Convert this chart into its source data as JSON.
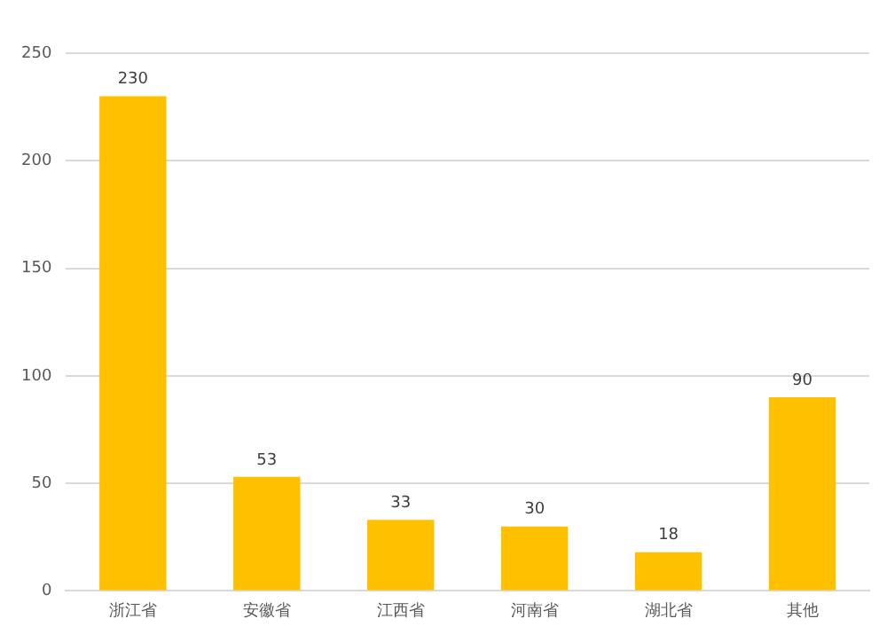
{
  "chart_data": {
    "type": "bar",
    "categories": [
      "浙江省",
      "安徽省",
      "江西省",
      "河南省",
      "湖北省",
      "其他"
    ],
    "values": [
      230,
      53,
      33,
      30,
      18,
      90
    ],
    "color": "#ffc000",
    "ylim": [
      0,
      250
    ],
    "yticks": [
      0,
      50,
      100,
      150,
      200,
      250
    ],
    "grid": "y",
    "data_labels": true
  }
}
